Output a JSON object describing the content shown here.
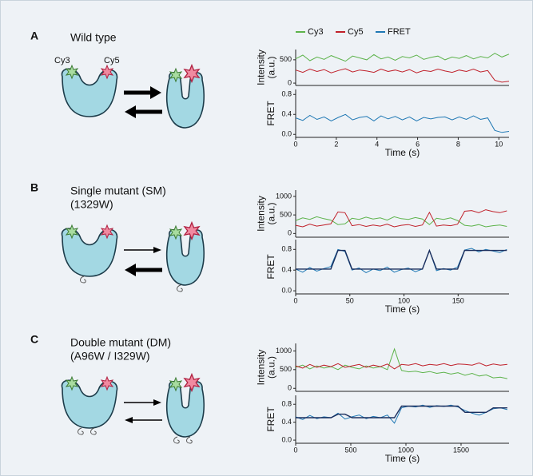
{
  "panels": [
    {
      "letter": "A",
      "title": "Wild type",
      "dye_labels": [
        "Cy3",
        "Cy5"
      ]
    },
    {
      "letter": "B",
      "title": "Single mutant (SM)",
      "subtitle": "(1329W)"
    },
    {
      "letter": "C",
      "title": "Double mutant (DM)",
      "subtitle": "(A96W / I329W)"
    }
  ],
  "chart_data": [
    {
      "type": "line",
      "y_label": [
        "Intensity",
        "(a.u.)"
      ],
      "ylim": [
        -50,
        720
      ],
      "yticks": [
        0,
        500
      ],
      "xlim": [
        0,
        10.5
      ],
      "x": [
        0,
        0.35,
        0.7,
        1.05,
        1.4,
        1.75,
        2.1,
        2.45,
        2.8,
        3.15,
        3.5,
        3.85,
        4.2,
        4.55,
        4.9,
        5.25,
        5.6,
        5.95,
        6.3,
        6.65,
        7,
        7.35,
        7.7,
        8.05,
        8.4,
        8.75,
        9.1,
        9.45,
        9.8,
        10.15,
        10.5
      ],
      "series": [
        {
          "name": "Cy3",
          "color": "#5db34b",
          "values": [
            520,
            600,
            480,
            560,
            510,
            590,
            530,
            470,
            580,
            540,
            500,
            610,
            520,
            560,
            490,
            570,
            540,
            600,
            510,
            550,
            580,
            500,
            560,
            530,
            590,
            520,
            570,
            540,
            640,
            560,
            620
          ]
        },
        {
          "name": "Cy5",
          "color": "#c0202a",
          "values": [
            280,
            230,
            300,
            250,
            290,
            220,
            270,
            310,
            240,
            280,
            260,
            230,
            300,
            250,
            280,
            240,
            290,
            220,
            270,
            250,
            300,
            260,
            230,
            280,
            250,
            300,
            240,
            270,
            60,
            20,
            40
          ]
        },
        {
          "name": "FRET",
          "color": "#1f78b4"
        }
      ]
    },
    {
      "type": "line",
      "y_label": [
        "FRET"
      ],
      "ylim": [
        -0.06,
        0.9
      ],
      "yticks": [
        {
          "value": 0,
          "label": "0.0"
        },
        0.4,
        0.8
      ],
      "xlim": [
        0,
        10.5
      ],
      "xticks": [
        0,
        2,
        4,
        6,
        8,
        10
      ],
      "x_label": "Time (s)",
      "x": [
        0,
        0.35,
        0.7,
        1.05,
        1.4,
        1.75,
        2.1,
        2.45,
        2.8,
        3.15,
        3.5,
        3.85,
        4.2,
        4.55,
        4.9,
        5.25,
        5.6,
        5.95,
        6.3,
        6.65,
        7,
        7.35,
        7.7,
        8.05,
        8.4,
        8.75,
        9.1,
        9.45,
        9.8,
        10.15,
        10.5
      ],
      "series": [
        {
          "color": "#1f78b4",
          "values": [
            0.33,
            0.28,
            0.38,
            0.3,
            0.35,
            0.27,
            0.34,
            0.4,
            0.29,
            0.34,
            0.36,
            0.27,
            0.37,
            0.31,
            0.36,
            0.29,
            0.35,
            0.27,
            0.34,
            0.31,
            0.34,
            0.35,
            0.29,
            0.35,
            0.3,
            0.37,
            0.3,
            0.33,
            0.08,
            0.04,
            0.06
          ]
        }
      ]
    },
    {
      "type": "line",
      "y_label": [
        "Intensity",
        "(a.u.)"
      ],
      "ylim": [
        -100,
        1170
      ],
      "yticks": [
        0,
        500,
        1000
      ],
      "xlim": [
        0,
        197
      ],
      "x": [
        0,
        6.5,
        13,
        19.5,
        26,
        32.5,
        39,
        45.5,
        52,
        58.5,
        65,
        71.5,
        78,
        84.5,
        91,
        97.5,
        104,
        110.5,
        117,
        123.5,
        130,
        136.5,
        143,
        149.5,
        156,
        162.5,
        169,
        175.5,
        182,
        188.5,
        195
      ],
      "series": [
        {
          "color": "#5db34b",
          "values": [
            350,
            420,
            380,
            450,
            400,
            360,
            240,
            260,
            410,
            380,
            440,
            390,
            420,
            360,
            450,
            400,
            380,
            430,
            390,
            240,
            410,
            380,
            420,
            350,
            220,
            200,
            240,
            180,
            210,
            230,
            190
          ]
        },
        {
          "color": "#c0202a",
          "values": [
            220,
            180,
            250,
            200,
            230,
            260,
            580,
            560,
            210,
            240,
            190,
            230,
            200,
            250,
            180,
            220,
            240,
            190,
            230,
            570,
            200,
            230,
            210,
            250,
            600,
            620,
            560,
            640,
            590,
            560,
            610
          ]
        }
      ]
    },
    {
      "type": "line",
      "y_label": [
        "FRET"
      ],
      "ylim": [
        -0.06,
        0.99
      ],
      "yticks": [
        {
          "value": 0,
          "label": "0.0"
        },
        0.4,
        0.8
      ],
      "xlim": [
        0,
        197
      ],
      "xticks": [
        0,
        50,
        100,
        150
      ],
      "x_label": "Time (s)",
      "x": [
        0,
        6.5,
        13,
        19.5,
        26,
        32.5,
        39,
        45.5,
        52,
        58.5,
        65,
        71.5,
        78,
        84.5,
        91,
        97.5,
        104,
        110.5,
        117,
        123.5,
        130,
        136.5,
        143,
        149.5,
        156,
        162.5,
        169,
        175.5,
        182,
        188.5,
        195
      ],
      "series": [
        {
          "color": "#1f78b4",
          "values": [
            0.42,
            0.36,
            0.45,
            0.38,
            0.43,
            0.47,
            0.8,
            0.76,
            0.4,
            0.44,
            0.35,
            0.42,
            0.39,
            0.46,
            0.36,
            0.41,
            0.44,
            0.37,
            0.42,
            0.78,
            0.39,
            0.43,
            0.4,
            0.46,
            0.79,
            0.82,
            0.75,
            0.8,
            0.77,
            0.74,
            0.8
          ]
        },
        {
          "color": "#1b2f5e",
          "values": [
            0.42,
            0.42,
            0.42,
            0.42,
            0.42,
            0.42,
            0.78,
            0.78,
            0.42,
            0.42,
            0.42,
            0.42,
            0.42,
            0.42,
            0.42,
            0.42,
            0.42,
            0.42,
            0.42,
            0.78,
            0.42,
            0.42,
            0.42,
            0.42,
            0.78,
            0.78,
            0.78,
            0.78,
            0.78,
            0.78,
            0.78
          ]
        }
      ]
    },
    {
      "type": "line",
      "y_label": [
        "Intensity",
        "(a.u.)"
      ],
      "ylim": [
        -80,
        1200
      ],
      "yticks": [
        0,
        500,
        1000
      ],
      "xlim": [
        0,
        1935
      ],
      "x": [
        0,
        64,
        128,
        192,
        256,
        320,
        384,
        448,
        512,
        576,
        640,
        704,
        768,
        832,
        896,
        960,
        1024,
        1088,
        1152,
        1216,
        1280,
        1344,
        1408,
        1472,
        1536,
        1600,
        1664,
        1728,
        1792,
        1856,
        1920
      ],
      "series": [
        {
          "color": "#5db34b",
          "values": [
            560,
            620,
            520,
            600,
            540,
            580,
            500,
            620,
            560,
            520,
            600,
            540,
            580,
            500,
            1050,
            480,
            440,
            460,
            420,
            450,
            400,
            430,
            380,
            420,
            350,
            400,
            330,
            360,
            280,
            300,
            260
          ]
        },
        {
          "color": "#c0202a",
          "values": [
            600,
            540,
            640,
            560,
            620,
            580,
            660,
            560,
            600,
            640,
            560,
            620,
            580,
            650,
            520,
            640,
            620,
            660,
            600,
            640,
            620,
            660,
            610,
            650,
            640,
            620,
            680,
            600,
            650,
            620,
            640
          ]
        }
      ]
    },
    {
      "type": "line",
      "y_label": [
        "FRET"
      ],
      "ylim": [
        -0.07,
        1.0
      ],
      "yticks": [
        {
          "value": 0,
          "label": "0.0"
        },
        0.4,
        0.8
      ],
      "xlim": [
        0,
        1935
      ],
      "xticks": [
        0,
        500,
        1000,
        1500
      ],
      "x_label": "Time (s)",
      "x": [
        0,
        64,
        128,
        192,
        256,
        320,
        384,
        448,
        512,
        576,
        640,
        704,
        768,
        832,
        896,
        960,
        1024,
        1088,
        1152,
        1216,
        1280,
        1344,
        1408,
        1472,
        1536,
        1600,
        1664,
        1728,
        1792,
        1856,
        1920
      ],
      "series": [
        {
          "color": "#1f78b4",
          "values": [
            0.52,
            0.46,
            0.55,
            0.48,
            0.52,
            0.5,
            0.6,
            0.47,
            0.52,
            0.56,
            0.48,
            0.53,
            0.5,
            0.56,
            0.38,
            0.72,
            0.76,
            0.74,
            0.78,
            0.73,
            0.77,
            0.75,
            0.78,
            0.74,
            0.66,
            0.6,
            0.56,
            0.62,
            0.7,
            0.72,
            0.68
          ]
        },
        {
          "color": "#1b2f5e",
          "values": [
            0.5,
            0.5,
            0.5,
            0.5,
            0.5,
            0.5,
            0.58,
            0.58,
            0.5,
            0.5,
            0.5,
            0.5,
            0.5,
            0.5,
            0.5,
            0.76,
            0.76,
            0.76,
            0.76,
            0.76,
            0.76,
            0.76,
            0.76,
            0.76,
            0.62,
            0.62,
            0.62,
            0.62,
            0.72,
            0.72,
            0.72
          ]
        }
      ]
    }
  ]
}
